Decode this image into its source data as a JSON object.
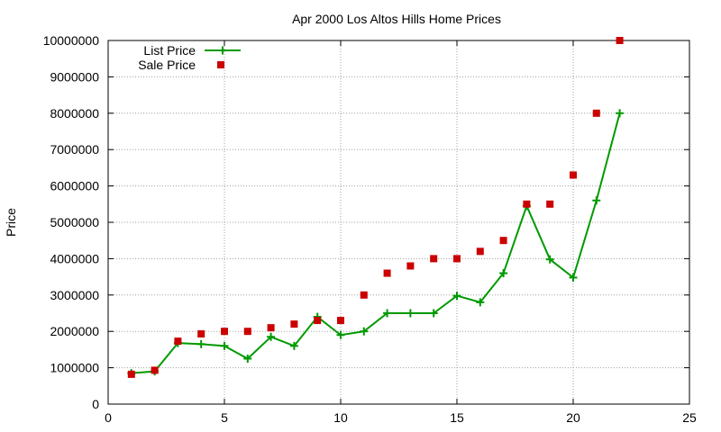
{
  "chart_data": {
    "type": "scatter",
    "title": "Apr 2000 Los Altos Hills Home Prices",
    "xlabel": "",
    "ylabel": "Price",
    "xlim": [
      0,
      25
    ],
    "ylim": [
      0,
      10000000
    ],
    "x_ticks": [
      0,
      5,
      10,
      15,
      20,
      25
    ],
    "y_ticks": [
      0,
      1000000,
      2000000,
      3000000,
      4000000,
      5000000,
      6000000,
      7000000,
      8000000,
      9000000,
      10000000
    ],
    "grid": true,
    "legend_position": "top-left",
    "series": [
      {
        "name": "List Price",
        "style": "linespoints",
        "color": "#009900",
        "marker": "plus",
        "x": [
          1,
          2,
          3,
          4,
          5,
          6,
          7,
          8,
          9,
          10,
          11,
          12,
          13,
          14,
          15,
          16,
          17,
          18,
          19,
          20,
          21,
          22
        ],
        "y": [
          850000,
          900000,
          1680000,
          1650000,
          1600000,
          1250000,
          1850000,
          1600000,
          2400000,
          1900000,
          2000000,
          2500000,
          2500000,
          2500000,
          2980000,
          2800000,
          3600000,
          5450000,
          3980000,
          3480000,
          5600000,
          8000000
        ]
      },
      {
        "name": "Sale Price",
        "style": "points",
        "color": "#cc0000",
        "marker": "square",
        "x": [
          1,
          2,
          3,
          4,
          5,
          6,
          7,
          8,
          9,
          10,
          11,
          12,
          13,
          14,
          15,
          16,
          17,
          18,
          19,
          20,
          21,
          22
        ],
        "y": [
          820000,
          930000,
          1730000,
          1930000,
          2000000,
          2000000,
          2100000,
          2200000,
          2300000,
          2300000,
          3000000,
          3600000,
          3800000,
          4000000,
          4000000,
          4200000,
          4500000,
          5500000,
          5500000,
          6300000,
          8000000,
          10000000
        ]
      }
    ]
  }
}
